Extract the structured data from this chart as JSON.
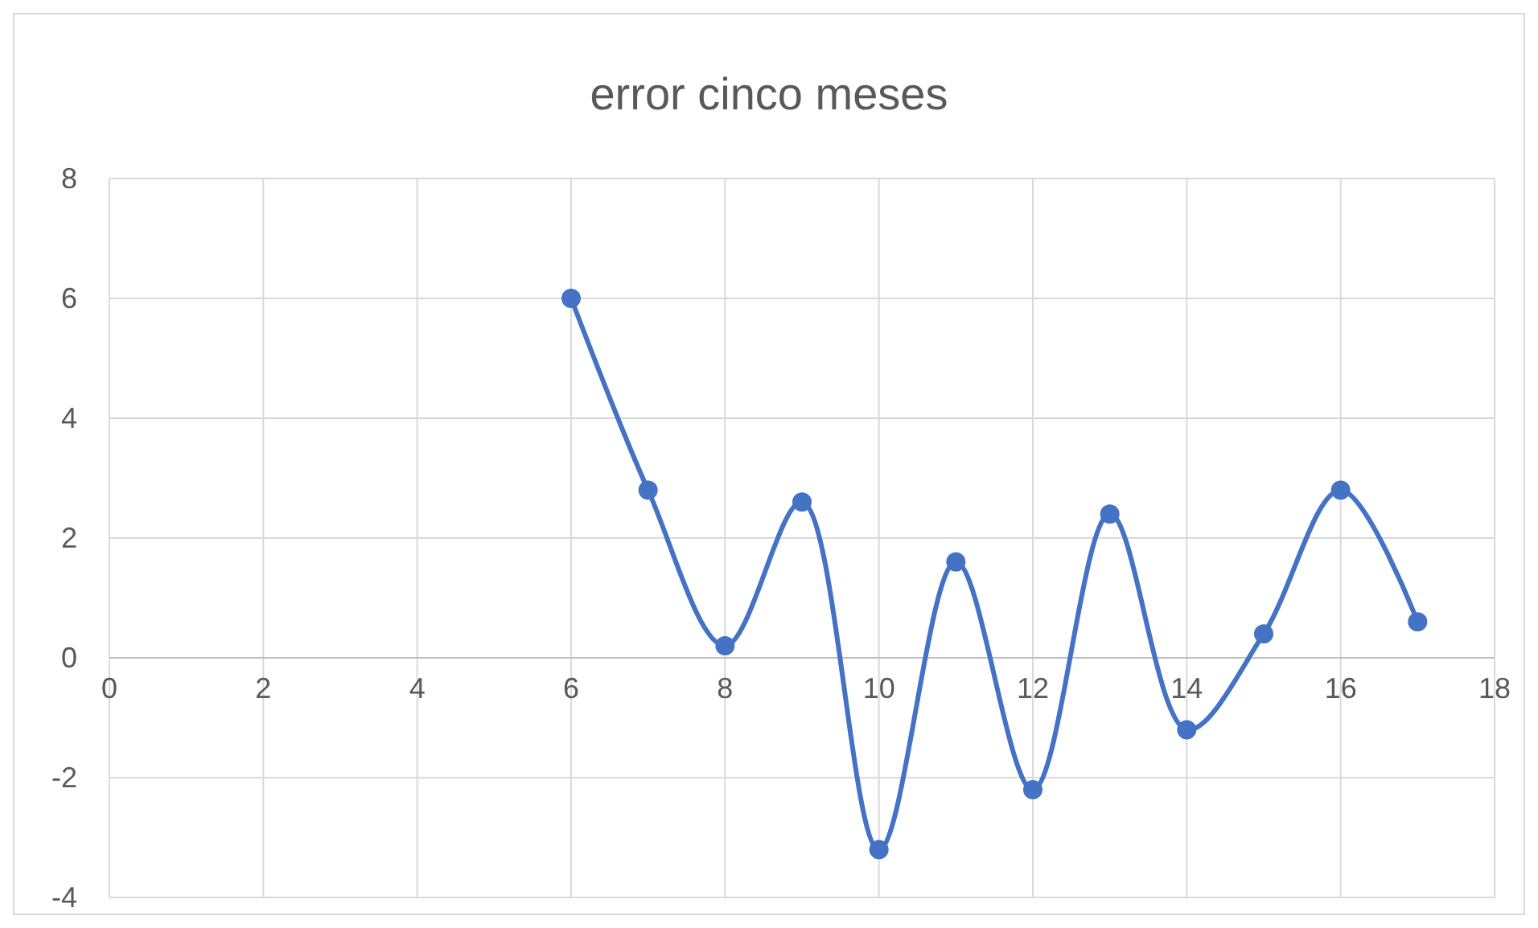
{
  "chart_data": {
    "type": "line",
    "title": "error cinco meses",
    "x": [
      6,
      7,
      8,
      9,
      10,
      11,
      12,
      13,
      14,
      15,
      16,
      17
    ],
    "series": [
      {
        "color": "#4472c4",
        "values": [
          6,
          2.8,
          0.2,
          2.6,
          -3.2,
          1.6,
          -2.2,
          2.4,
          -1.2,
          0.4,
          2.8,
          0.6
        ]
      }
    ],
    "xlim": [
      0,
      18
    ],
    "xticks": [
      0,
      2,
      4,
      6,
      8,
      10,
      12,
      14,
      16,
      18
    ],
    "ylim": [
      -4,
      8
    ],
    "yticks": [
      -4,
      -2,
      0,
      2,
      4,
      6,
      8
    ],
    "grid": true,
    "marker": "circle",
    "line_style": "solid"
  }
}
